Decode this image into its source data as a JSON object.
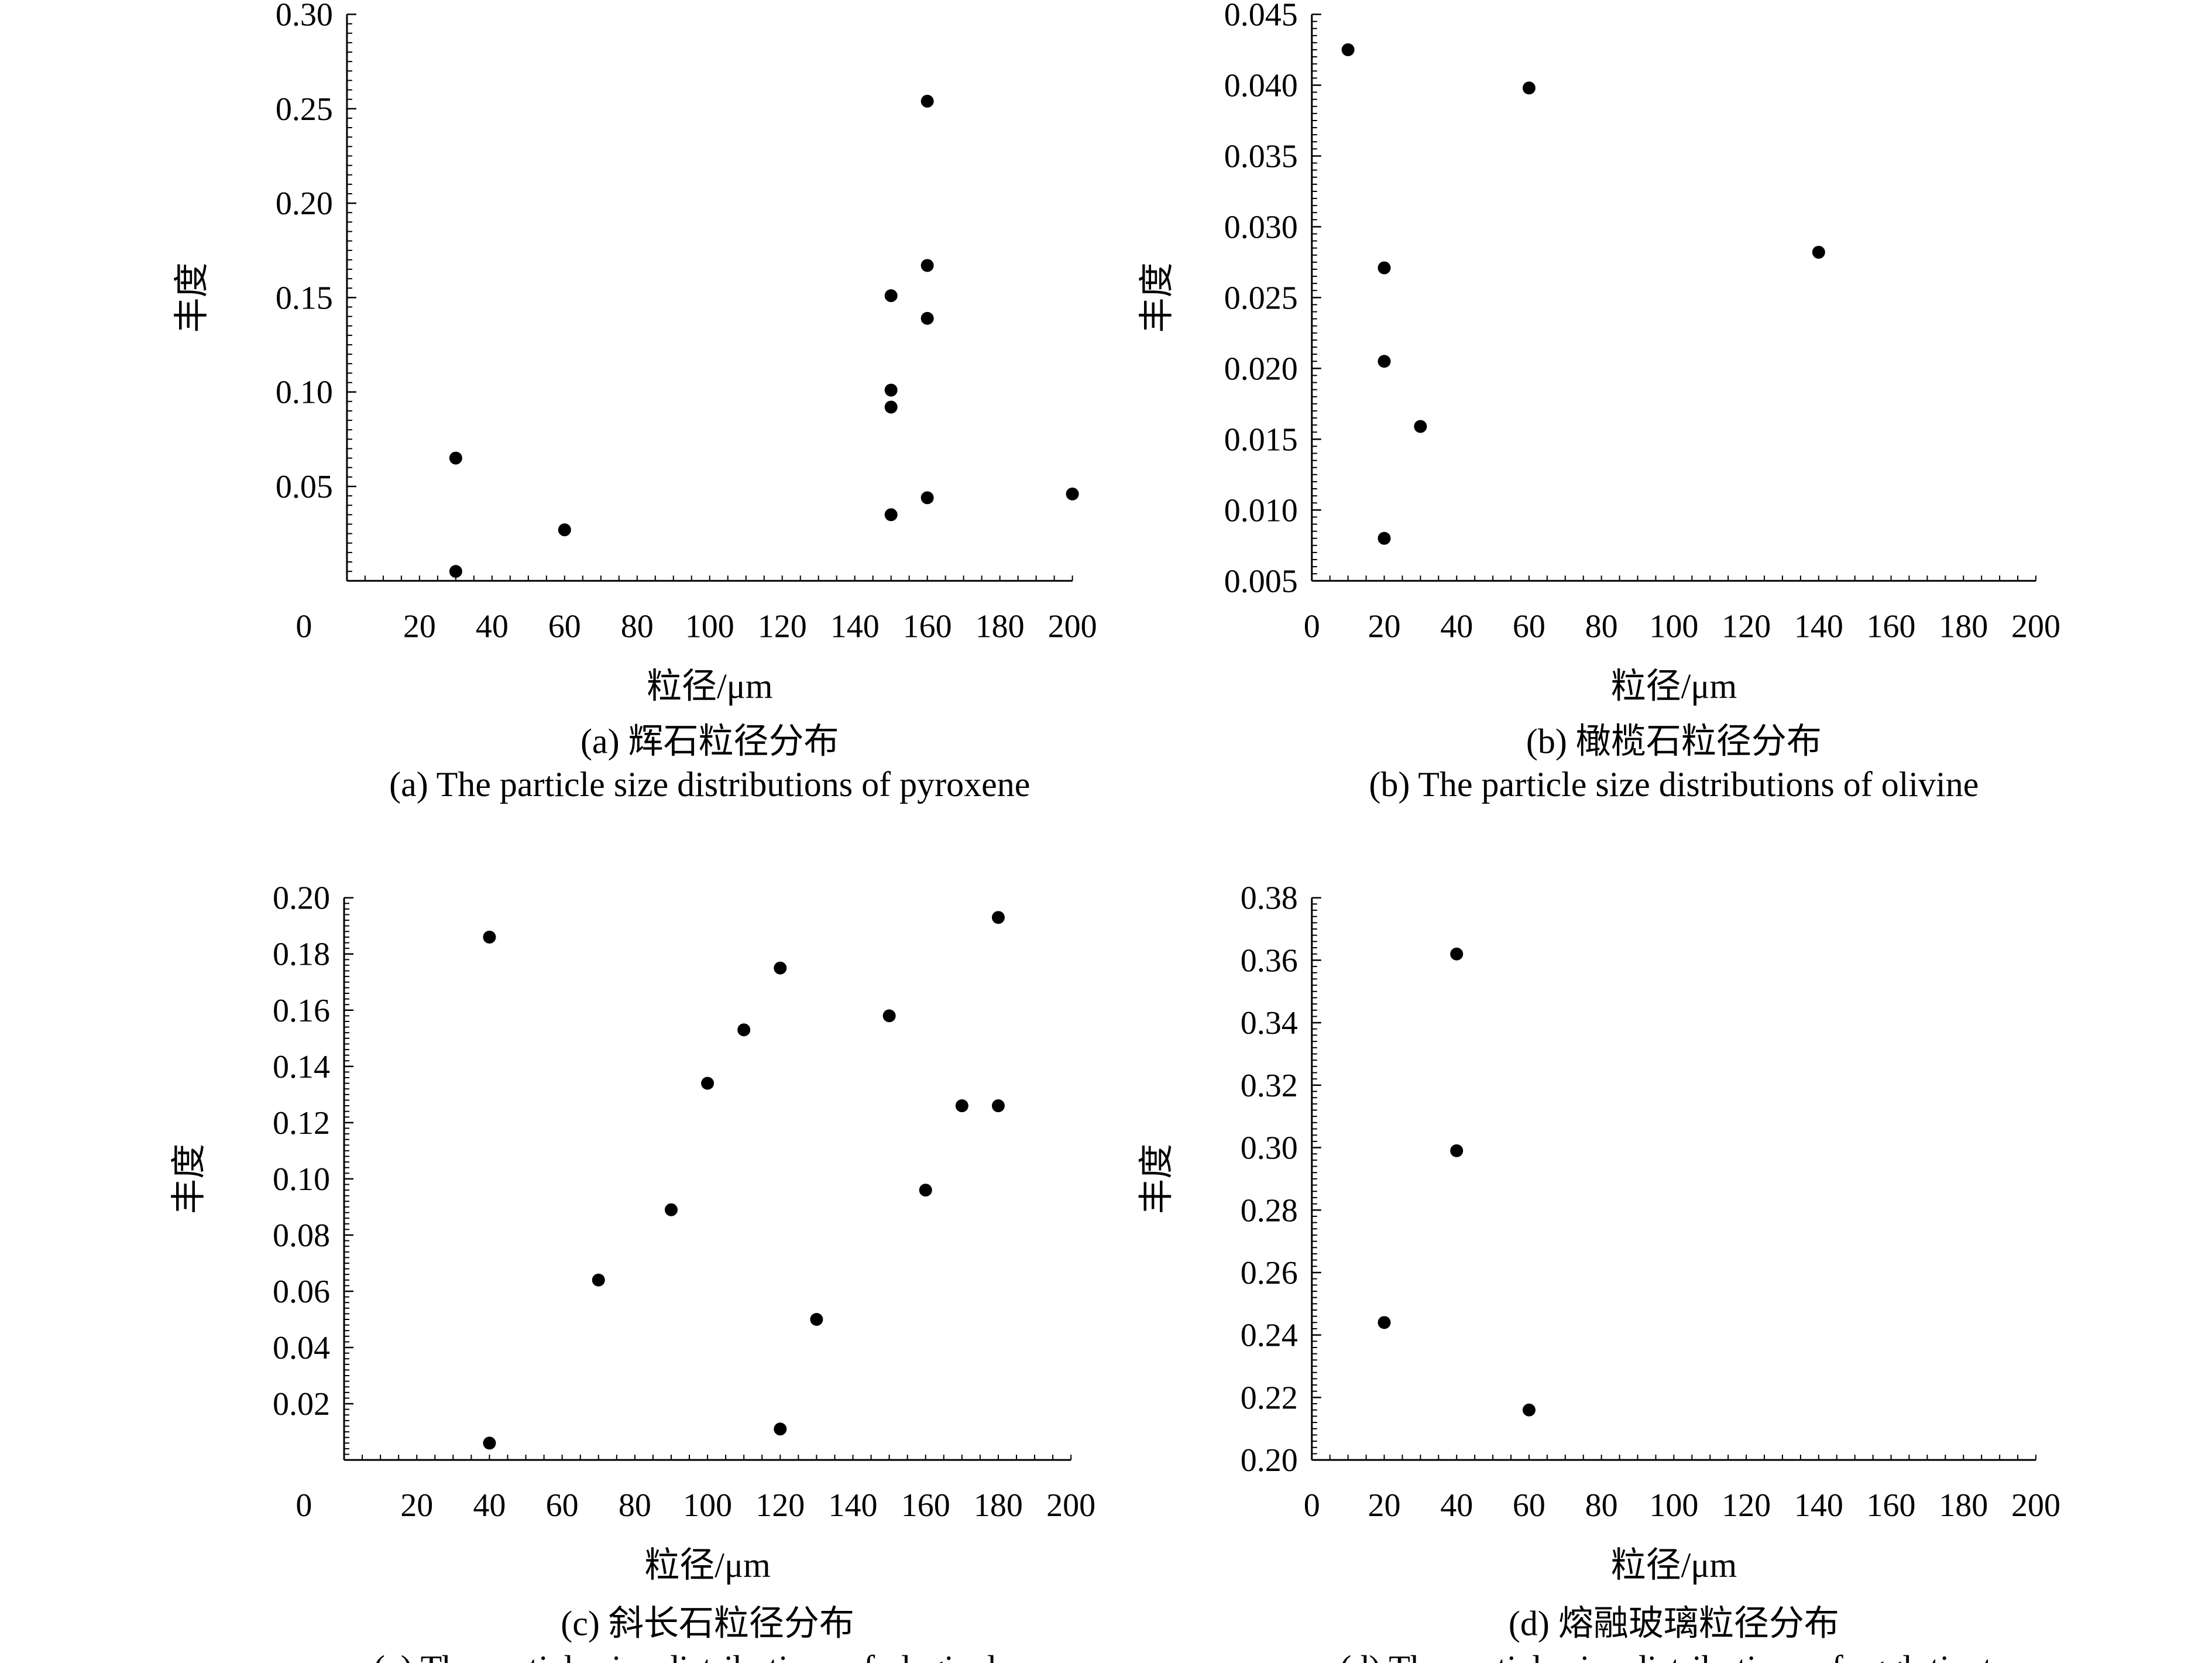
{
  "chart_data": [
    {
      "id": "a",
      "type": "scatter",
      "title_cn": "(a) 辉石粒径分布",
      "title_en": "(a) The particle size distributions of pyroxene",
      "xlabel": "粒径/μm",
      "ylabel": "丰度",
      "xlim": [
        0,
        200
      ],
      "ylim": [
        0,
        0.3
      ],
      "xticks": [
        20,
        40,
        60,
        80,
        100,
        120,
        140,
        160,
        180,
        200
      ],
      "xtick_labels": [
        "20",
        "40",
        "60",
        "80",
        "100",
        "120",
        "140",
        "160",
        "180",
        "200"
      ],
      "x_origin_label": "0",
      "yticks": [
        0.05,
        0.1,
        0.15,
        0.2,
        0.25,
        0.3
      ],
      "ytick_labels": [
        "0.05",
        "0.10",
        "0.15",
        "0.20",
        "0.25",
        "0.30"
      ],
      "points": [
        {
          "x": 30,
          "y": 0.065
        },
        {
          "x": 30,
          "y": 0.005
        },
        {
          "x": 60,
          "y": 0.027
        },
        {
          "x": 150,
          "y": 0.151
        },
        {
          "x": 150,
          "y": 0.101
        },
        {
          "x": 150,
          "y": 0.092
        },
        {
          "x": 150,
          "y": 0.035
        },
        {
          "x": 160,
          "y": 0.254
        },
        {
          "x": 160,
          "y": 0.167
        },
        {
          "x": 160,
          "y": 0.139
        },
        {
          "x": 160,
          "y": 0.044
        },
        {
          "x": 200,
          "y": 0.046
        }
      ]
    },
    {
      "id": "b",
      "type": "scatter",
      "title_cn": "(b) 橄榄石粒径分布",
      "title_en": "(b) The particle size distributions of olivine",
      "xlabel": "粒径/μm",
      "ylabel": "丰度",
      "xlim": [
        0,
        200
      ],
      "ylim": [
        0.005,
        0.045
      ],
      "xticks": [
        0,
        20,
        40,
        60,
        80,
        100,
        120,
        140,
        160,
        180,
        200
      ],
      "xtick_labels": [
        "0",
        "20",
        "40",
        "60",
        "80",
        "100",
        "120",
        "140",
        "160",
        "180",
        "200"
      ],
      "yticks": [
        0.005,
        0.01,
        0.015,
        0.02,
        0.025,
        0.03,
        0.035,
        0.04,
        0.045
      ],
      "ytick_labels": [
        "0.005",
        "0.010",
        "0.015",
        "0.020",
        "0.025",
        "0.030",
        "0.035",
        "0.040",
        "0.045"
      ],
      "points": [
        {
          "x": 10,
          "y": 0.0425
        },
        {
          "x": 20,
          "y": 0.0271
        },
        {
          "x": 20,
          "y": 0.0205
        },
        {
          "x": 20,
          "y": 0.008
        },
        {
          "x": 30,
          "y": 0.0159
        },
        {
          "x": 60,
          "y": 0.0398
        },
        {
          "x": 140,
          "y": 0.0282
        }
      ]
    },
    {
      "id": "c",
      "type": "scatter",
      "title_cn": "(c) 斜长石粒径分布",
      "title_en": "(c) The particle size distributions of plagioclase",
      "xlabel": "粒径/μm",
      "ylabel": "丰度",
      "xlim": [
        0,
        200
      ],
      "ylim": [
        0,
        0.2
      ],
      "xticks": [
        20,
        40,
        60,
        80,
        100,
        120,
        140,
        160,
        180,
        200
      ],
      "xtick_labels": [
        "20",
        "40",
        "60",
        "80",
        "100",
        "120",
        "140",
        "160",
        "180",
        "200"
      ],
      "x_origin_label": "0",
      "yticks": [
        0.02,
        0.04,
        0.06,
        0.08,
        0.1,
        0.12,
        0.14,
        0.16,
        0.18,
        0.2
      ],
      "ytick_labels": [
        "0.02",
        "0.04",
        "0.06",
        "0.08",
        "0.10",
        "0.12",
        "0.14",
        "0.16",
        "0.18",
        "0.20"
      ],
      "points": [
        {
          "x": 40,
          "y": 0.186
        },
        {
          "x": 40,
          "y": 0.006
        },
        {
          "x": 70,
          "y": 0.064
        },
        {
          "x": 90,
          "y": 0.089
        },
        {
          "x": 100,
          "y": 0.134
        },
        {
          "x": 110,
          "y": 0.153
        },
        {
          "x": 120,
          "y": 0.175
        },
        {
          "x": 120,
          "y": 0.011
        },
        {
          "x": 130,
          "y": 0.05
        },
        {
          "x": 150,
          "y": 0.158
        },
        {
          "x": 160,
          "y": 0.096
        },
        {
          "x": 170,
          "y": 0.126
        },
        {
          "x": 180,
          "y": 0.193
        },
        {
          "x": 180,
          "y": 0.126
        }
      ]
    },
    {
      "id": "d",
      "type": "scatter",
      "title_cn": "(d) 熔融玻璃粒径分布",
      "title_en": "(d) The particle size distributions of agglutinate",
      "xlabel": "粒径/μm",
      "ylabel": "丰度",
      "xlim": [
        0,
        200
      ],
      "ylim": [
        0.2,
        0.38
      ],
      "xticks": [
        0,
        20,
        40,
        60,
        80,
        100,
        120,
        140,
        160,
        180,
        200
      ],
      "xtick_labels": [
        "0",
        "20",
        "40",
        "60",
        "80",
        "100",
        "120",
        "140",
        "160",
        "180",
        "200"
      ],
      "yticks": [
        0.2,
        0.22,
        0.24,
        0.26,
        0.28,
        0.3,
        0.32,
        0.34,
        0.36,
        0.38
      ],
      "ytick_labels": [
        "0.20",
        "0.22",
        "0.24",
        "0.26",
        "0.28",
        "0.30",
        "0.32",
        "0.34",
        "0.36",
        "0.38"
      ],
      "points": [
        {
          "x": 20,
          "y": 0.244
        },
        {
          "x": 40,
          "y": 0.362
        },
        {
          "x": 40,
          "y": 0.299
        },
        {
          "x": 60,
          "y": 0.216
        }
      ]
    }
  ],
  "colors": {
    "marker": "#000000",
    "axis": "#000000",
    "background": "#ffffff"
  }
}
